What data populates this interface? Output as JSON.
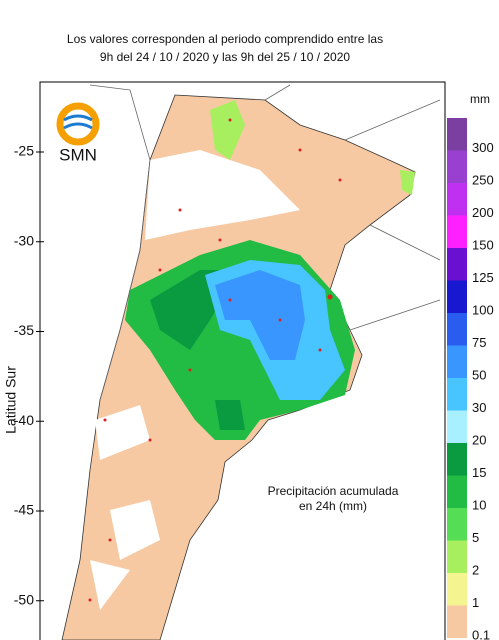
{
  "header": {
    "line1": "Los valores corresponden al periodo comprendido entre las",
    "line2": "9h del 24 / 10 / 2020  y las 9h del 25 / 10 / 2020"
  },
  "logo": "SMN",
  "axis": {
    "label": "Latitud Sur",
    "ticks": [
      -25,
      -30,
      -35,
      -40,
      -45,
      -50
    ]
  },
  "legend": {
    "unit": "mm",
    "title_lines": [
      "Precipitación acumulada",
      "en 24h (mm)"
    ],
    "items": [
      {
        "label": "300",
        "color": "#7a3fa0"
      },
      {
        "label": "250",
        "color": "#9a40d0"
      },
      {
        "label": "200",
        "color": "#c030f0"
      },
      {
        "label": "150",
        "color": "#ff20ff"
      },
      {
        "label": "125",
        "color": "#6a10d0"
      },
      {
        "label": "100",
        "color": "#1818d0"
      },
      {
        "label": "75",
        "color": "#2a5cf0"
      },
      {
        "label": "50",
        "color": "#3a96ff"
      },
      {
        "label": "30",
        "color": "#48c4ff"
      },
      {
        "label": "20",
        "color": "#a8f0ff"
      },
      {
        "label": "15",
        "color": "#0a9a40"
      },
      {
        "label": "10",
        "color": "#22bb44"
      },
      {
        "label": "5",
        "color": "#55dd55"
      },
      {
        "label": "2",
        "color": "#a8ef60"
      },
      {
        "label": "1",
        "color": "#f4f490"
      },
      {
        "label": "0.1",
        "color": "#f6c9a2"
      }
    ]
  }
}
